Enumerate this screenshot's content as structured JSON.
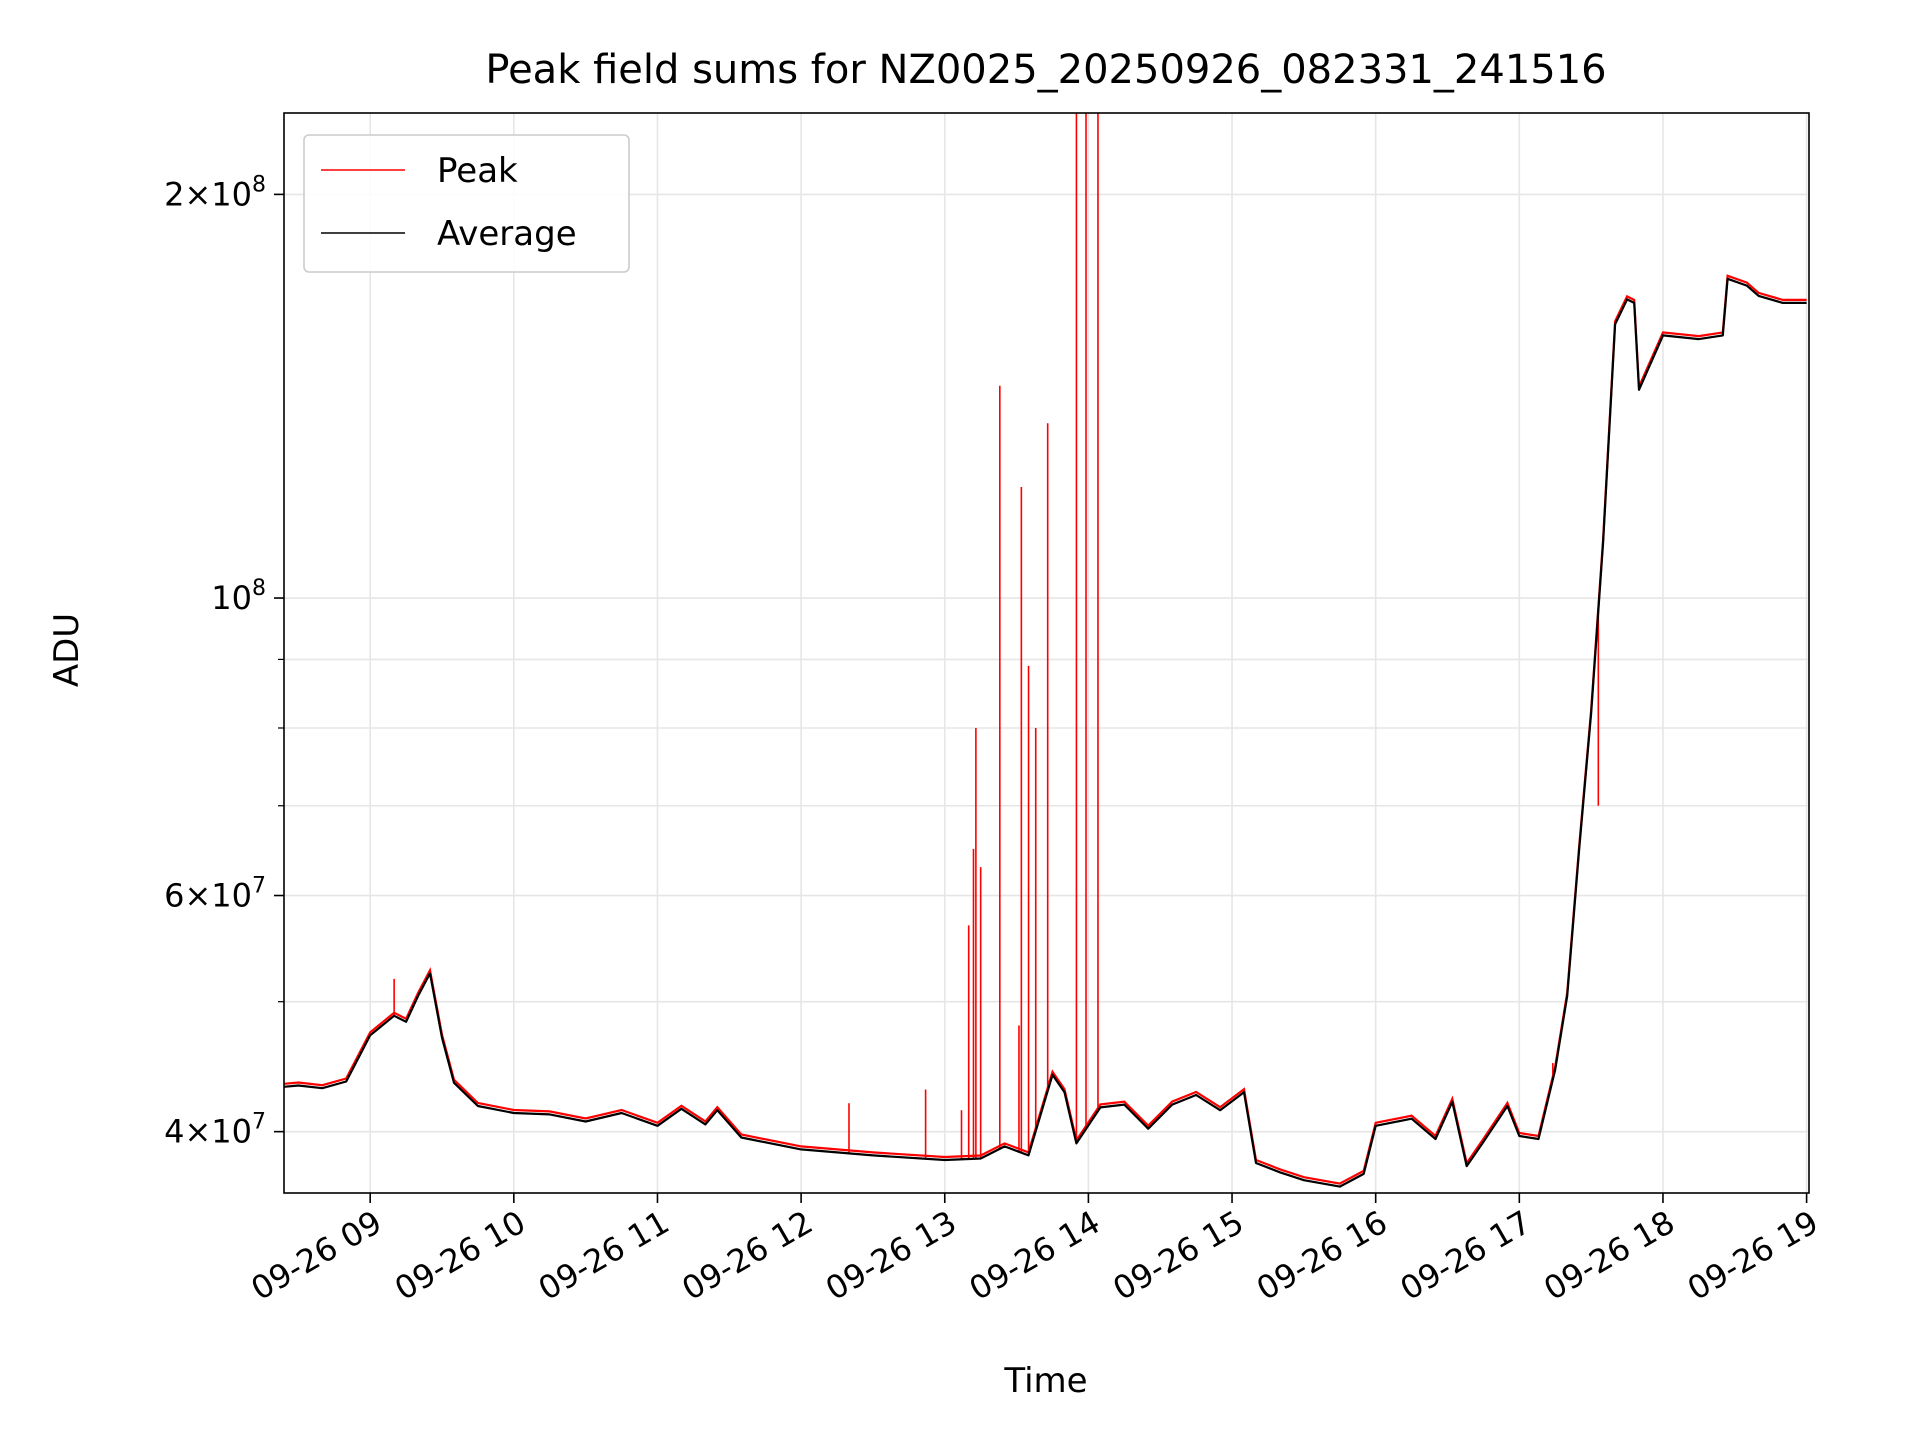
{
  "chart_data": {
    "type": "line",
    "title": "Peak field sums for NZ0025_20250926_082331_241516",
    "xlabel": "Time",
    "ylabel": "ADU",
    "x_axis": {
      "type": "time",
      "range": [
        "2025-09-26 08:24",
        "2025-09-26 19:01"
      ],
      "ticks": [
        {
          "value": "2025-09-26 09:00",
          "label": "09-26 09"
        },
        {
          "value": "2025-09-26 10:00",
          "label": "09-26 10"
        },
        {
          "value": "2025-09-26 11:00",
          "label": "09-26 11"
        },
        {
          "value": "2025-09-26 12:00",
          "label": "09-26 12"
        },
        {
          "value": "2025-09-26 13:00",
          "label": "09-26 13"
        },
        {
          "value": "2025-09-26 14:00",
          "label": "09-26 14"
        },
        {
          "value": "2025-09-26 15:00",
          "label": "09-26 15"
        },
        {
          "value": "2025-09-26 16:00",
          "label": "09-26 16"
        },
        {
          "value": "2025-09-26 17:00",
          "label": "09-26 17"
        },
        {
          "value": "2025-09-26 18:00",
          "label": "09-26 18"
        },
        {
          "value": "2025-09-26 19:00",
          "label": "09-26 19"
        }
      ]
    },
    "y_axis": {
      "scale": "log",
      "range": [
        36000000,
        230000000
      ],
      "major_ticks": [
        {
          "value": 40000000,
          "base": "4",
          "exp": "7"
        },
        {
          "value": 60000000,
          "base": "6",
          "exp": "7"
        },
        {
          "value": 100000000,
          "base": "",
          "exp": "8"
        },
        {
          "value": 200000000,
          "base": "2",
          "exp": "8"
        }
      ],
      "minor_ticks": [
        50000000,
        70000000,
        80000000,
        90000000
      ]
    },
    "grid": true,
    "legend": {
      "placement": "top-left",
      "entries": [
        {
          "name": "Peak",
          "color": "#ff0000"
        },
        {
          "name": "Average",
          "color": "#000000"
        }
      ]
    },
    "series": [
      {
        "name": "Average",
        "color": "#000000",
        "points": [
          [
            "2025-09-26 08:24",
            43200000
          ],
          [
            "2025-09-26 08:30",
            43300000
          ],
          [
            "2025-09-26 08:40",
            43100000
          ],
          [
            "2025-09-26 08:50",
            43600000
          ],
          [
            "2025-09-26 09:00",
            47200000
          ],
          [
            "2025-09-26 09:10",
            48800000
          ],
          [
            "2025-09-26 09:15",
            48300000
          ],
          [
            "2025-09-26 09:20",
            50500000
          ],
          [
            "2025-09-26 09:25",
            52500000
          ],
          [
            "2025-09-26 09:30",
            47000000
          ],
          [
            "2025-09-26 09:35",
            43500000
          ],
          [
            "2025-09-26 09:45",
            41800000
          ],
          [
            "2025-09-26 10:00",
            41300000
          ],
          [
            "2025-09-26 10:15",
            41200000
          ],
          [
            "2025-09-26 10:30",
            40700000
          ],
          [
            "2025-09-26 10:45",
            41300000
          ],
          [
            "2025-09-26 11:00",
            40400000
          ],
          [
            "2025-09-26 11:10",
            41600000
          ],
          [
            "2025-09-26 11:20",
            40500000
          ],
          [
            "2025-09-26 11:25",
            41500000
          ],
          [
            "2025-09-26 11:35",
            39600000
          ],
          [
            "2025-09-26 12:00",
            38800000
          ],
          [
            "2025-09-26 12:30",
            38400000
          ],
          [
            "2025-09-26 13:00",
            38100000
          ],
          [
            "2025-09-26 13:15",
            38200000
          ],
          [
            "2025-09-26 13:25",
            39000000
          ],
          [
            "2025-09-26 13:35",
            38400000
          ],
          [
            "2025-09-26 13:45",
            44100000
          ],
          [
            "2025-09-26 13:50",
            42800000
          ],
          [
            "2025-09-26 13:55",
            39200000
          ],
          [
            "2025-09-26 14:05",
            41700000
          ],
          [
            "2025-09-26 14:15",
            41900000
          ],
          [
            "2025-09-26 14:25",
            40200000
          ],
          [
            "2025-09-26 14:35",
            41900000
          ],
          [
            "2025-09-26 14:45",
            42600000
          ],
          [
            "2025-09-26 14:55",
            41500000
          ],
          [
            "2025-09-26 15:05",
            42800000
          ],
          [
            "2025-09-26 15:10",
            37900000
          ],
          [
            "2025-09-26 15:20",
            37300000
          ],
          [
            "2025-09-26 15:30",
            36800000
          ],
          [
            "2025-09-26 15:45",
            36400000
          ],
          [
            "2025-09-26 15:55",
            37200000
          ],
          [
            "2025-09-26 16:00",
            40400000
          ],
          [
            "2025-09-26 16:15",
            40900000
          ],
          [
            "2025-09-26 16:25",
            39500000
          ],
          [
            "2025-09-26 16:32",
            42100000
          ],
          [
            "2025-09-26 16:38",
            37700000
          ],
          [
            "2025-09-26 16:45",
            39300000
          ],
          [
            "2025-09-26 16:55",
            41800000
          ],
          [
            "2025-09-26 17:00",
            39700000
          ],
          [
            "2025-09-26 17:08",
            39500000
          ],
          [
            "2025-09-26 17:15",
            44500000
          ],
          [
            "2025-09-26 17:20",
            50500000
          ],
          [
            "2025-09-26 17:25",
            65000000
          ],
          [
            "2025-09-26 17:30",
            82000000
          ],
          [
            "2025-09-26 17:35",
            110000000
          ],
          [
            "2025-09-26 17:40",
            160000000
          ],
          [
            "2025-09-26 17:45",
            167000000
          ],
          [
            "2025-09-26 17:48",
            166000000
          ],
          [
            "2025-09-26 17:50",
            143000000
          ],
          [
            "2025-09-26 18:00",
            157000000
          ],
          [
            "2025-09-26 18:15",
            156000000
          ],
          [
            "2025-09-26 18:25",
            157000000
          ],
          [
            "2025-09-26 18:27",
            173000000
          ],
          [
            "2025-09-26 18:35",
            171000000
          ],
          [
            "2025-09-26 18:40",
            168000000
          ],
          [
            "2025-09-26 18:50",
            166000000
          ],
          [
            "2025-09-26 19:00",
            166000000
          ]
        ]
      },
      {
        "name": "Peak",
        "color": "#ff0000",
        "spikes": [
          [
            "2025-09-26 09:10",
            52000000
          ],
          [
            "2025-09-26 12:20",
            42000000
          ],
          [
            "2025-09-26 12:52",
            43000000
          ],
          [
            "2025-09-26 13:07",
            41500000
          ],
          [
            "2025-09-26 13:10",
            57000000
          ],
          [
            "2025-09-26 13:12",
            65000000
          ],
          [
            "2025-09-26 13:13",
            80000000
          ],
          [
            "2025-09-26 13:15",
            63000000
          ],
          [
            "2025-09-26 13:23",
            144000000
          ],
          [
            "2025-09-26 13:31",
            48000000
          ],
          [
            "2025-09-26 13:32",
            121000000
          ],
          [
            "2025-09-26 13:35",
            89000000
          ],
          [
            "2025-09-26 13:38",
            80000000
          ],
          [
            "2025-09-26 13:43",
            135000000
          ],
          [
            "2025-09-26 13:55",
            230000000
          ],
          [
            "2025-09-26 13:59",
            230000000
          ],
          [
            "2025-09-26 14:04",
            230000000
          ],
          [
            "2025-09-26 17:14",
            45000000
          ],
          [
            "2025-09-26 17:33",
            70000000
          ]
        ]
      }
    ]
  }
}
